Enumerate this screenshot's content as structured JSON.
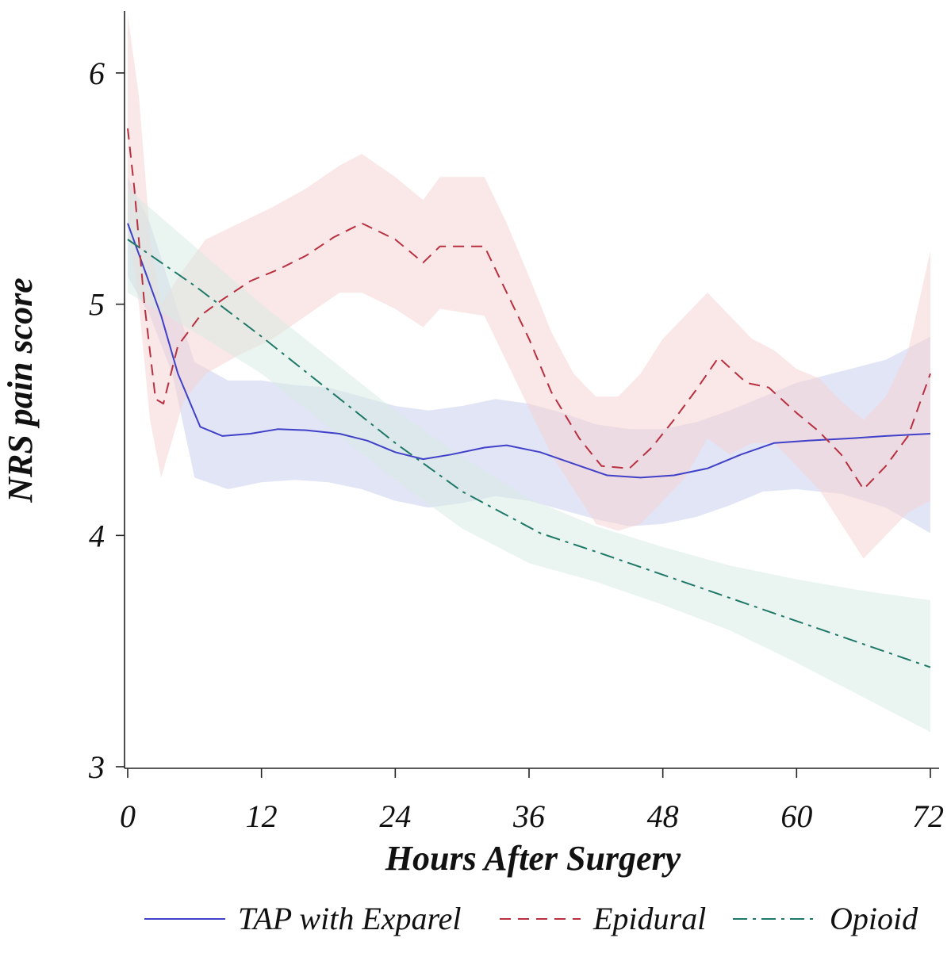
{
  "chart_data": {
    "type": "line",
    "xlabel": "Hours After Surgery",
    "ylabel": "NRS pain score",
    "xlim": [
      0,
      72
    ],
    "ylim": [
      3,
      6.3
    ],
    "xticks": [
      0,
      12,
      24,
      36,
      48,
      60,
      72
    ],
    "xtick_labels": [
      "0",
      "12",
      "24",
      "36",
      "48",
      "60",
      "72"
    ],
    "yticks": [
      3,
      4,
      5,
      6
    ],
    "ytick_labels": [
      "3",
      "4",
      "5",
      "6"
    ],
    "grid": false,
    "legend_position": "bottom",
    "series": [
      {
        "name": "TAP with Exparel",
        "color": "#4040c8",
        "dash": "solid",
        "band_color": "#c8d0ee",
        "points": [
          [
            0,
            5.35
          ],
          [
            1.5,
            5.15
          ],
          [
            3,
            4.95
          ],
          [
            4.5,
            4.7
          ],
          [
            6.5,
            4.47
          ],
          [
            8.5,
            4.43
          ],
          [
            11,
            4.44
          ],
          [
            13.5,
            4.46
          ],
          [
            16,
            4.455
          ],
          [
            19,
            4.44
          ],
          [
            21.5,
            4.41
          ],
          [
            24,
            4.36
          ],
          [
            26.5,
            4.33
          ],
          [
            29,
            4.35
          ],
          [
            32,
            4.38
          ],
          [
            34,
            4.39
          ],
          [
            37,
            4.36
          ],
          [
            40,
            4.31
          ],
          [
            43,
            4.26
          ],
          [
            46,
            4.25
          ],
          [
            49,
            4.26
          ],
          [
            52,
            4.29
          ],
          [
            55,
            4.35
          ],
          [
            58,
            4.4
          ],
          [
            61,
            4.41
          ],
          [
            65,
            4.42
          ],
          [
            68,
            4.43
          ],
          [
            72,
            4.44
          ]
        ],
        "band_upper": [
          [
            0,
            5.55
          ],
          [
            2,
            5.35
          ],
          [
            4,
            5.05
          ],
          [
            6,
            4.75
          ],
          [
            9,
            4.67
          ],
          [
            12,
            4.67
          ],
          [
            15,
            4.65
          ],
          [
            18,
            4.64
          ],
          [
            21,
            4.6
          ],
          [
            24,
            4.56
          ],
          [
            27,
            4.54
          ],
          [
            30,
            4.56
          ],
          [
            33,
            4.59
          ],
          [
            36,
            4.57
          ],
          [
            39,
            4.53
          ],
          [
            42,
            4.48
          ],
          [
            45,
            4.46
          ],
          [
            48,
            4.46
          ],
          [
            51,
            4.49
          ],
          [
            54,
            4.54
          ],
          [
            57,
            4.6
          ],
          [
            60,
            4.66
          ],
          [
            64,
            4.71
          ],
          [
            68,
            4.76
          ],
          [
            72,
            4.86
          ]
        ],
        "band_lower": [
          [
            0,
            5.12
          ],
          [
            2,
            4.95
          ],
          [
            4,
            4.7
          ],
          [
            6,
            4.25
          ],
          [
            9,
            4.2
          ],
          [
            12,
            4.23
          ],
          [
            15,
            4.24
          ],
          [
            18,
            4.23
          ],
          [
            21,
            4.2
          ],
          [
            24,
            4.15
          ],
          [
            27,
            4.12
          ],
          [
            30,
            4.14
          ],
          [
            33,
            4.17
          ],
          [
            36,
            4.15
          ],
          [
            39,
            4.11
          ],
          [
            42,
            4.07
          ],
          [
            45,
            4.04
          ],
          [
            48,
            4.05
          ],
          [
            51,
            4.08
          ],
          [
            54,
            4.13
          ],
          [
            57,
            4.19
          ],
          [
            60,
            4.2
          ],
          [
            64,
            4.18
          ],
          [
            68,
            4.12
          ],
          [
            72,
            4.01
          ]
        ]
      },
      {
        "name": "Epidural",
        "color": "#b83040",
        "dash": "14,9",
        "band_color": "#f6d4d4",
        "points": [
          [
            0,
            5.76
          ],
          [
            0.6,
            5.5
          ],
          [
            1.5,
            5.0
          ],
          [
            2.5,
            4.59
          ],
          [
            3.2,
            4.57
          ],
          [
            4.5,
            4.82
          ],
          [
            6.5,
            4.95
          ],
          [
            8.5,
            5.02
          ],
          [
            11,
            5.1
          ],
          [
            13.5,
            5.15
          ],
          [
            16,
            5.21
          ],
          [
            18.5,
            5.29
          ],
          [
            21,
            5.35
          ],
          [
            24,
            5.28
          ],
          [
            26.5,
            5.18
          ],
          [
            28,
            5.25
          ],
          [
            32,
            5.25
          ],
          [
            34,
            5.05
          ],
          [
            36,
            4.85
          ],
          [
            38,
            4.62
          ],
          [
            40.5,
            4.42
          ],
          [
            42.5,
            4.3
          ],
          [
            45,
            4.29
          ],
          [
            47,
            4.38
          ],
          [
            49,
            4.5
          ],
          [
            51,
            4.63
          ],
          [
            53,
            4.77
          ],
          [
            55.5,
            4.66
          ],
          [
            57.5,
            4.64
          ],
          [
            60,
            4.53
          ],
          [
            62,
            4.45
          ],
          [
            64,
            4.35
          ],
          [
            66,
            4.2
          ],
          [
            68,
            4.3
          ],
          [
            70,
            4.43
          ],
          [
            72,
            4.7
          ]
        ],
        "band_upper": [
          [
            0,
            6.25
          ],
          [
            1,
            5.9
          ],
          [
            2,
            5.3
          ],
          [
            3,
            5.0
          ],
          [
            5,
            5.15
          ],
          [
            7,
            5.28
          ],
          [
            10,
            5.35
          ],
          [
            13,
            5.42
          ],
          [
            16,
            5.5
          ],
          [
            19,
            5.6
          ],
          [
            21,
            5.65
          ],
          [
            24,
            5.55
          ],
          [
            26.5,
            5.45
          ],
          [
            28,
            5.55
          ],
          [
            32,
            5.55
          ],
          [
            34,
            5.35
          ],
          [
            36,
            5.12
          ],
          [
            38,
            4.88
          ],
          [
            40,
            4.7
          ],
          [
            42,
            4.6
          ],
          [
            44,
            4.6
          ],
          [
            46,
            4.7
          ],
          [
            48,
            4.85
          ],
          [
            50,
            4.95
          ],
          [
            52,
            5.05
          ],
          [
            54,
            4.95
          ],
          [
            56,
            4.85
          ],
          [
            58,
            4.8
          ],
          [
            60,
            4.72
          ],
          [
            62,
            4.68
          ],
          [
            64,
            4.58
          ],
          [
            66,
            4.5
          ],
          [
            68,
            4.6
          ],
          [
            70,
            4.8
          ],
          [
            72,
            5.23
          ]
        ],
        "band_lower": [
          [
            0,
            5.35
          ],
          [
            1,
            5.0
          ],
          [
            2,
            4.5
          ],
          [
            3,
            4.25
          ],
          [
            5,
            4.58
          ],
          [
            7,
            4.7
          ],
          [
            10,
            4.78
          ],
          [
            13,
            4.85
          ],
          [
            16,
            4.95
          ],
          [
            19,
            5.05
          ],
          [
            21,
            5.05
          ],
          [
            24,
            4.98
          ],
          [
            26.5,
            4.9
          ],
          [
            28,
            4.98
          ],
          [
            32,
            4.95
          ],
          [
            34,
            4.75
          ],
          [
            36,
            4.55
          ],
          [
            38,
            4.35
          ],
          [
            40,
            4.2
          ],
          [
            42,
            4.05
          ],
          [
            44,
            4.02
          ],
          [
            46,
            4.05
          ],
          [
            48,
            4.15
          ],
          [
            50,
            4.25
          ],
          [
            52,
            4.42
          ],
          [
            54,
            4.35
          ],
          [
            56,
            4.4
          ],
          [
            58,
            4.4
          ],
          [
            60,
            4.3
          ],
          [
            62,
            4.2
          ],
          [
            64,
            4.05
          ],
          [
            66,
            3.9
          ],
          [
            68,
            4.0
          ],
          [
            70,
            4.1
          ],
          [
            72,
            4.15
          ]
        ]
      },
      {
        "name": "Opioid",
        "color": "#1e7868",
        "dash": "18,7,4,7",
        "band_color": "#d8ebe4",
        "points": [
          [
            0,
            5.28
          ],
          [
            6,
            5.08
          ],
          [
            12,
            4.86
          ],
          [
            18,
            4.63
          ],
          [
            24,
            4.4
          ],
          [
            30,
            4.19
          ],
          [
            37,
            4.01
          ],
          [
            42,
            3.93
          ],
          [
            48,
            3.83
          ],
          [
            54,
            3.73
          ],
          [
            60,
            3.63
          ],
          [
            66,
            3.53
          ],
          [
            72,
            3.43
          ]
        ],
        "band_upper": [
          [
            0,
            5.5
          ],
          [
            6,
            5.25
          ],
          [
            12,
            5.0
          ],
          [
            18,
            4.77
          ],
          [
            24,
            4.54
          ],
          [
            30,
            4.34
          ],
          [
            36,
            4.16
          ],
          [
            42,
            4.04
          ],
          [
            48,
            3.95
          ],
          [
            54,
            3.87
          ],
          [
            60,
            3.81
          ],
          [
            66,
            3.76
          ],
          [
            72,
            3.72
          ]
        ],
        "band_lower": [
          [
            0,
            5.05
          ],
          [
            6,
            4.88
          ],
          [
            12,
            4.7
          ],
          [
            18,
            4.47
          ],
          [
            24,
            4.24
          ],
          [
            30,
            4.03
          ],
          [
            36,
            3.88
          ],
          [
            42,
            3.8
          ],
          [
            48,
            3.7
          ],
          [
            54,
            3.59
          ],
          [
            60,
            3.45
          ],
          [
            66,
            3.3
          ],
          [
            72,
            3.15
          ]
        ]
      }
    ]
  }
}
